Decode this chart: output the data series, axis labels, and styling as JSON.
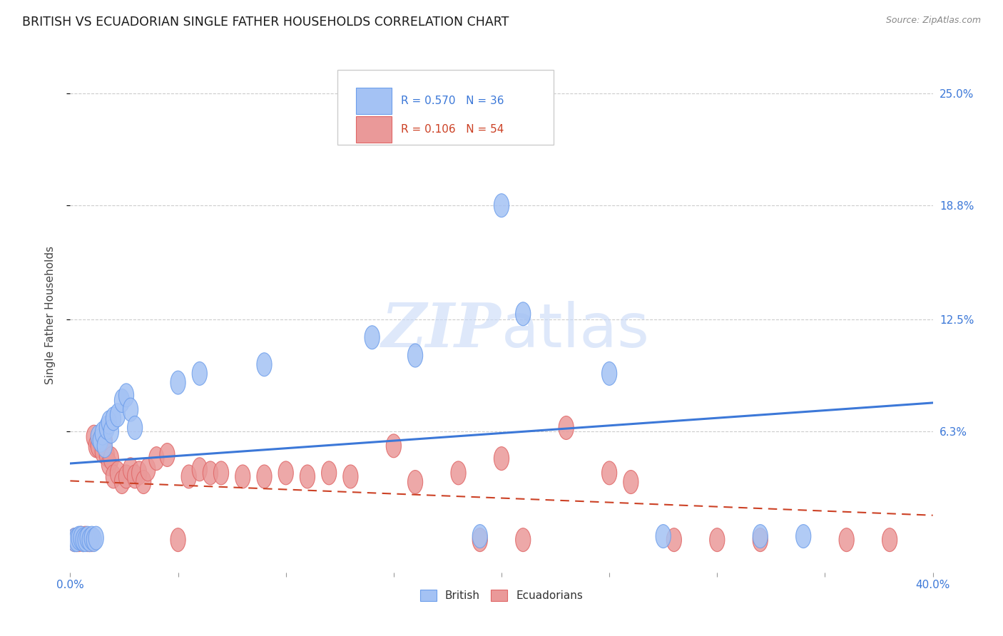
{
  "title": "BRITISH VS ECUADORIAN SINGLE FATHER HOUSEHOLDS CORRELATION CHART",
  "source": "Source: ZipAtlas.com",
  "ylabel": "Single Father Households",
  "xlim": [
    0.0,
    0.4
  ],
  "ylim": [
    -0.015,
    0.27
  ],
  "british_R": 0.57,
  "british_N": 36,
  "ecuadorian_R": 0.106,
  "ecuadorian_N": 54,
  "british_color": "#a4c2f4",
  "ecuadorian_color": "#ea9999",
  "british_edge_color": "#6d9eeb",
  "ecuadorian_edge_color": "#e06666",
  "british_line_color": "#3c78d8",
  "ecuadorian_line_color": "#cc4125",
  "watermark_color": "#c9daf8",
  "background_color": "#ffffff",
  "british_x": [
    0.002,
    0.003,
    0.004,
    0.005,
    0.006,
    0.007,
    0.008,
    0.009,
    0.01,
    0.011,
    0.012,
    0.013,
    0.014,
    0.015,
    0.016,
    0.017,
    0.018,
    0.019,
    0.02,
    0.022,
    0.024,
    0.026,
    0.028,
    0.03,
    0.05,
    0.06,
    0.09,
    0.14,
    0.16,
    0.19,
    0.2,
    0.21,
    0.25,
    0.275,
    0.32,
    0.34
  ],
  "british_y": [
    0.003,
    0.003,
    0.004,
    0.004,
    0.003,
    0.003,
    0.004,
    0.003,
    0.004,
    0.003,
    0.004,
    0.06,
    0.058,
    0.062,
    0.055,
    0.065,
    0.068,
    0.063,
    0.07,
    0.072,
    0.08,
    0.083,
    0.075,
    0.065,
    0.09,
    0.095,
    0.1,
    0.115,
    0.105,
    0.005,
    0.188,
    0.128,
    0.095,
    0.005,
    0.005,
    0.005
  ],
  "ecuadorian_x": [
    0.002,
    0.003,
    0.004,
    0.005,
    0.006,
    0.007,
    0.008,
    0.009,
    0.01,
    0.011,
    0.012,
    0.013,
    0.014,
    0.015,
    0.016,
    0.017,
    0.018,
    0.019,
    0.02,
    0.022,
    0.024,
    0.026,
    0.028,
    0.03,
    0.032,
    0.034,
    0.036,
    0.04,
    0.045,
    0.05,
    0.055,
    0.06,
    0.065,
    0.07,
    0.08,
    0.09,
    0.1,
    0.11,
    0.12,
    0.13,
    0.15,
    0.16,
    0.18,
    0.19,
    0.2,
    0.21,
    0.23,
    0.25,
    0.26,
    0.28,
    0.3,
    0.32,
    0.36,
    0.38
  ],
  "ecuadorian_y": [
    0.003,
    0.003,
    0.003,
    0.004,
    0.003,
    0.004,
    0.003,
    0.003,
    0.003,
    0.06,
    0.055,
    0.055,
    0.058,
    0.052,
    0.058,
    0.05,
    0.045,
    0.048,
    0.038,
    0.04,
    0.035,
    0.038,
    0.042,
    0.038,
    0.04,
    0.035,
    0.042,
    0.048,
    0.05,
    0.003,
    0.038,
    0.042,
    0.04,
    0.04,
    0.038,
    0.038,
    0.04,
    0.038,
    0.04,
    0.038,
    0.055,
    0.035,
    0.04,
    0.003,
    0.048,
    0.003,
    0.065,
    0.04,
    0.035,
    0.003,
    0.003,
    0.003,
    0.003,
    0.003
  ]
}
